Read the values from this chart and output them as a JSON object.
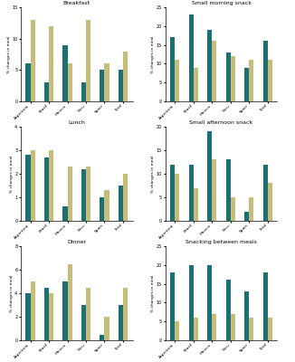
{
  "panels": [
    {
      "title": "Breakfast",
      "ylim": [
        0,
        15
      ],
      "yticks": [
        0,
        5,
        10,
        15
      ],
      "increased": [
        6,
        3,
        9,
        3,
        5,
        5
      ],
      "decreased": [
        13,
        12,
        6,
        13,
        6,
        8
      ]
    },
    {
      "title": "Small morning snack",
      "ylim": [
        0,
        25
      ],
      "yticks": [
        0,
        5,
        10,
        15,
        20,
        25
      ],
      "increased": [
        17,
        23,
        19,
        13,
        9,
        16
      ],
      "decreased": [
        11,
        9,
        16,
        12,
        11,
        11
      ]
    },
    {
      "title": "Lunch",
      "ylim": [
        0,
        4
      ],
      "yticks": [
        0,
        1,
        2,
        3,
        4
      ],
      "increased": [
        2.8,
        2.7,
        0.6,
        2.2,
        1.0,
        1.5
      ],
      "decreased": [
        3.0,
        3.0,
        2.3,
        2.3,
        1.3,
        2.0
      ]
    },
    {
      "title": "Small afternoon snack",
      "ylim": [
        0,
        20
      ],
      "yticks": [
        0,
        5,
        10,
        15,
        20
      ],
      "increased": [
        12,
        12,
        19,
        13,
        2,
        12
      ],
      "decreased": [
        10,
        7,
        13,
        5,
        5,
        8
      ]
    },
    {
      "title": "Dinner",
      "ylim": [
        0,
        8
      ],
      "yticks": [
        0,
        2,
        4,
        6,
        8
      ],
      "increased": [
        4,
        4.5,
        5,
        3,
        0.5,
        3
      ],
      "decreased": [
        5,
        4,
        6.5,
        4.5,
        2,
        4.5
      ]
    },
    {
      "title": "Snacking between meals",
      "ylim": [
        0,
        25
      ],
      "yticks": [
        0,
        5,
        10,
        15,
        20,
        25
      ],
      "increased": [
        18,
        20,
        20,
        16,
        13,
        18
      ],
      "decreased": [
        5,
        6,
        7,
        7,
        6,
        6
      ]
    }
  ],
  "countries": [
    "Argentina",
    "Brazil",
    "Mexico",
    "Peru",
    "Spain",
    "Total"
  ],
  "color_increased": "#1a7072",
  "color_decreased": "#c8bc7a",
  "ylabel": "% changes in meal",
  "bar_width": 0.25
}
